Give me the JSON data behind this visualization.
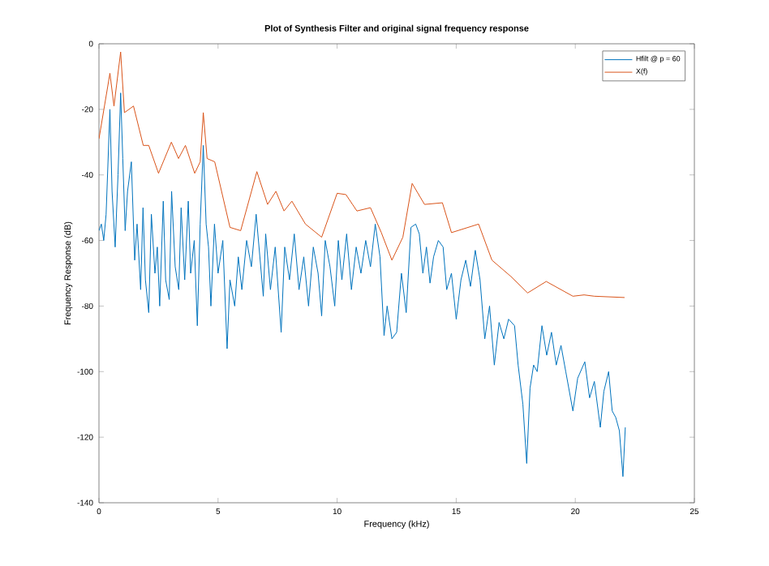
{
  "chart_data": {
    "type": "line",
    "title": "Plot of Synthesis Filter and original signal frequency response",
    "xlabel": "Frequency (kHz)",
    "ylabel": "Frequency Response (dB)",
    "xlim": [
      0,
      25
    ],
    "xticks": [
      0,
      5,
      10,
      15,
      20,
      25
    ],
    "ylim": [
      -140,
      0
    ],
    "yticks": [
      -140,
      -120,
      -100,
      -80,
      -60,
      -40,
      -20,
      0
    ],
    "grid": false,
    "legend": "top right",
    "marker": "none",
    "line_style": "solid",
    "series": [
      {
        "name": "Hfilt @ p = 60",
        "color": "#0072bd",
        "x": [
          0,
          0.1,
          0.2,
          0.3,
          0.46,
          0.55,
          0.68,
          0.8,
          0.91,
          1.0,
          1.1,
          1.2,
          1.36,
          1.5,
          1.6,
          1.75,
          1.85,
          1.95,
          2.09,
          2.2,
          2.35,
          2.45,
          2.55,
          2.7,
          2.8,
          2.95,
          3.05,
          3.2,
          3.35,
          3.45,
          3.6,
          3.75,
          3.85,
          4.0,
          4.13,
          4.25,
          4.38,
          4.5,
          4.6,
          4.7,
          4.85,
          5.0,
          5.2,
          5.38,
          5.5,
          5.7,
          5.85,
          6.0,
          6.2,
          6.4,
          6.6,
          6.9,
          7.0,
          7.2,
          7.4,
          7.65,
          7.8,
          8.0,
          8.2,
          8.4,
          8.6,
          8.8,
          9.0,
          9.2,
          9.35,
          9.5,
          9.7,
          9.9,
          10.05,
          10.2,
          10.4,
          10.6,
          10.8,
          11.0,
          11.2,
          11.4,
          11.6,
          11.8,
          11.97,
          12.1,
          12.3,
          12.5,
          12.7,
          12.9,
          13.1,
          13.3,
          13.45,
          13.6,
          13.75,
          13.9,
          14.05,
          14.25,
          14.45,
          14.6,
          14.8,
          15.0,
          15.2,
          15.4,
          15.6,
          15.8,
          16.0,
          16.2,
          16.4,
          16.6,
          16.8,
          17.0,
          17.2,
          17.45,
          17.6,
          17.8,
          17.96,
          18.1,
          18.25,
          18.4,
          18.6,
          18.8,
          19.0,
          19.2,
          19.4,
          19.6,
          19.9,
          20.1,
          20.4,
          20.6,
          20.8,
          21.05,
          21.2,
          21.4,
          21.55,
          21.7,
          21.85,
          22.0,
          22.1
        ],
        "values": [
          -57,
          -55,
          -60,
          -52,
          -20,
          -45,
          -62,
          -40,
          -15,
          -35,
          -57,
          -45,
          -36,
          -66,
          -55,
          -75,
          -50,
          -72,
          -82,
          -52,
          -70,
          -62,
          -80,
          -48,
          -72,
          -78,
          -45,
          -68,
          -75,
          -50,
          -72,
          -48,
          -70,
          -60,
          -86,
          -55,
          -31,
          -55,
          -62,
          -80,
          -55,
          -70,
          -60,
          -93,
          -72,
          -80,
          -65,
          -75,
          -60,
          -68,
          -52,
          -77,
          -58,
          -75,
          -62,
          -88,
          -62,
          -72,
          -58,
          -75,
          -65,
          -80,
          -62,
          -70,
          -83,
          -60,
          -68,
          -80,
          -60,
          -72,
          -58,
          -75,
          -62,
          -70,
          -60,
          -68,
          -55,
          -65,
          -89,
          -80,
          -90,
          -88,
          -70,
          -82,
          -56,
          -55,
          -58,
          -70,
          -62,
          -73,
          -65,
          -60,
          -62,
          -75,
          -70,
          -84,
          -72,
          -66,
          -74,
          -63,
          -72,
          -90,
          -80,
          -98,
          -85,
          -90,
          -84,
          -86,
          -98,
          -110,
          -128,
          -105,
          -98,
          -100,
          -86,
          -95,
          -88,
          -98,
          -92,
          -100,
          -112,
          -102,
          -97,
          -108,
          -103,
          -117,
          -106,
          -100,
          -112,
          -114,
          -118,
          -132,
          -117
        ]
      },
      {
        "name": "X(f)",
        "color": "#d95319",
        "x": [
          0,
          0.46,
          0.63,
          0.91,
          1.07,
          1.45,
          1.86,
          2.09,
          2.5,
          3.04,
          3.34,
          3.63,
          4.02,
          4.25,
          4.38,
          4.54,
          4.86,
          5.5,
          5.95,
          6.63,
          7.08,
          7.43,
          7.77,
          8.1,
          8.67,
          9.35,
          10.0,
          10.37,
          10.83,
          11.4,
          11.85,
          12.3,
          12.76,
          13.15,
          13.67,
          14.42,
          14.8,
          15.94,
          16.5,
          17.3,
          18.0,
          18.78,
          19.9,
          20.37,
          20.8,
          22.07
        ],
        "values": [
          -29,
          -9,
          -19,
          -2.5,
          -21,
          -19,
          -31,
          -31,
          -39.5,
          -30,
          -35,
          -31,
          -39.5,
          -36,
          -21,
          -35,
          -36,
          -56,
          -57,
          -39,
          -49,
          -45,
          -51,
          -48,
          -55,
          -59,
          -45.6,
          -46,
          -51,
          -50,
          -57.5,
          -66,
          -59,
          -42.6,
          -49,
          -48.5,
          -57.6,
          -55,
          -66,
          -71,
          -76,
          -72.5,
          -77,
          -76.6,
          -77,
          -77.4
        ]
      }
    ]
  }
}
